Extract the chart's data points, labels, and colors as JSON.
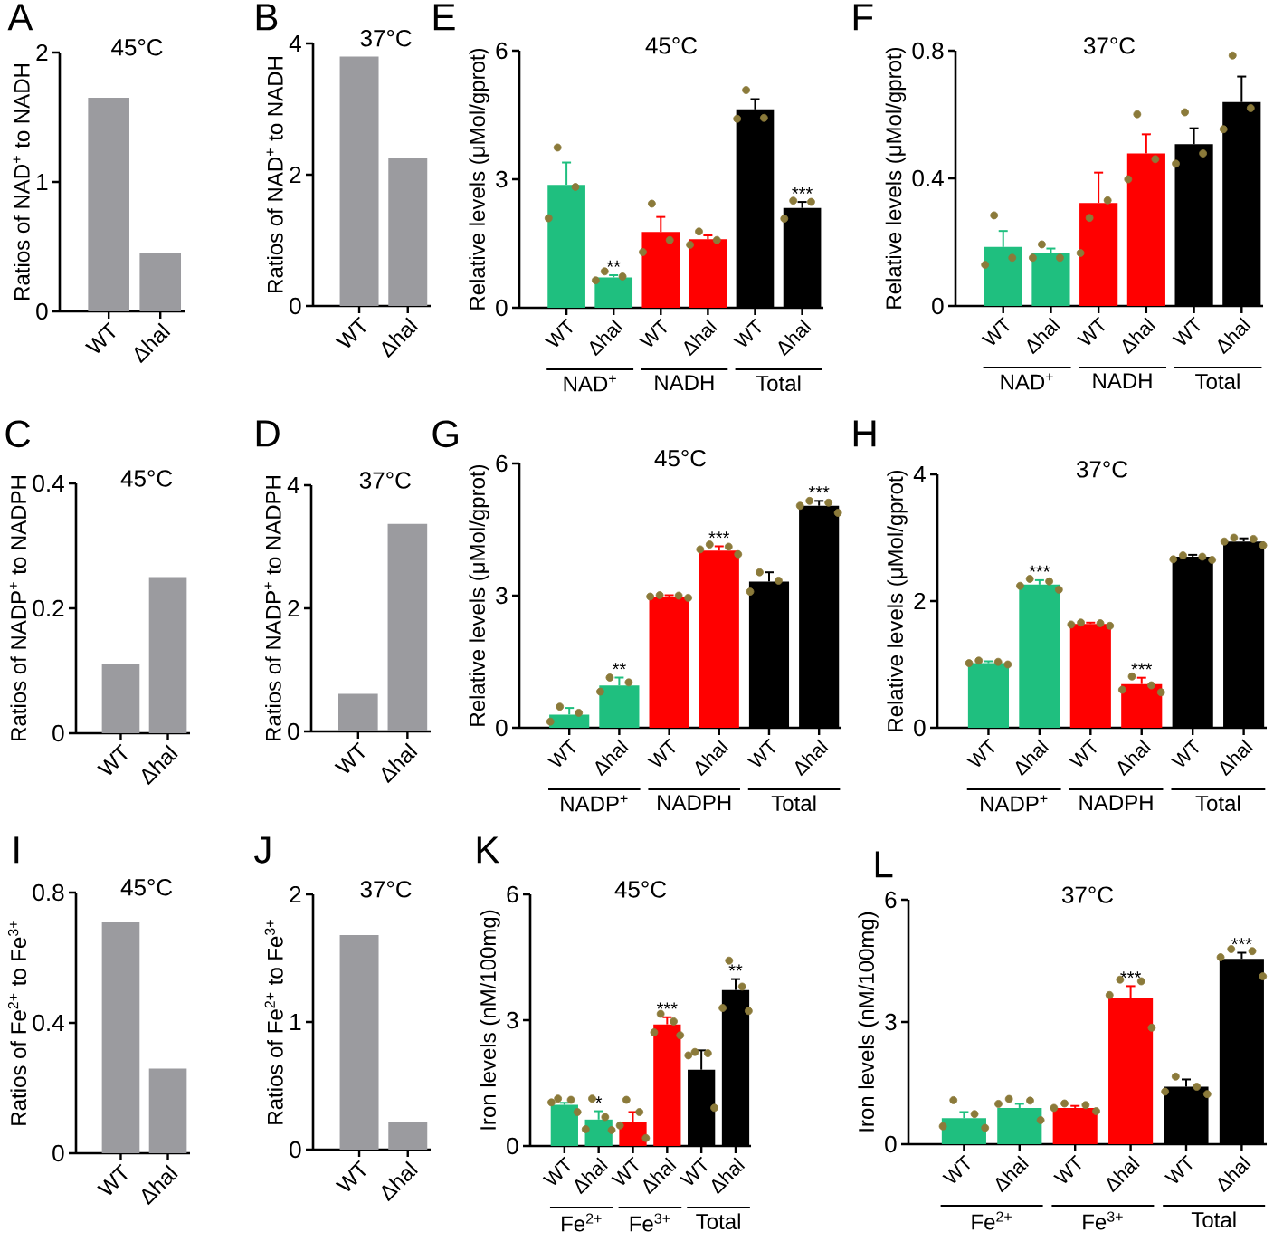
{
  "chart_data": [
    {
      "type": "bar",
      "title": "45°C",
      "ylabel": "Ratios of NAD$^{+}$ to NADH",
      "annotations": [
        "A"
      ],
      "categories": [
        "WT",
        "Δhal"
      ],
      "values": [
        1.65,
        0.45
      ],
      "color": "#9b9b9f",
      "ylim": [
        0,
        2
      ],
      "yticks": [
        0,
        1,
        2
      ]
    },
    {
      "type": "bar",
      "title": "37°C",
      "ylabel": "Ratios of NAD$^{+}$ to NADH",
      "annotations": [
        "B"
      ],
      "categories": [
        "WT",
        "Δhal"
      ],
      "values": [
        3.8,
        2.25
      ],
      "color": "#9b9b9f",
      "ylim": [
        0,
        4
      ],
      "yticks": [
        0,
        2,
        4
      ]
    },
    {
      "type": "bar",
      "title": "45°C",
      "ylabel": "Relative levels (μMol/gprot)",
      "annotations": [
        "E",
        "NAD$^{+}$",
        "NADH",
        "Total"
      ],
      "categories": [
        "WT",
        "Δhal",
        "WT",
        "Δhal",
        "WT",
        "Δhal"
      ],
      "ylim": [
        0,
        6
      ],
      "yticks": [
        0,
        3,
        6
      ],
      "series": [
        {
          "type": "bar",
          "colors": [
            "#1fbf7f",
            "#1fbf7f",
            "#ff0000",
            "#ff0000",
            "#000000",
            "#000000"
          ],
          "values": [
            2.87,
            0.71,
            1.77,
            1.6,
            4.63,
            2.33
          ],
          "errors": [
            [
              2.87,
              3.39
            ],
            [
              0.71,
              0.76
            ],
            [
              1.77,
              2.12
            ],
            [
              1.6,
              1.69
            ],
            [
              4.63,
              4.87
            ],
            [
              2.33,
              2.47
            ]
          ],
          "value_labels": [
            null,
            "**",
            null,
            null,
            null,
            "***"
          ]
        },
        {
          "type": "scatter",
          "color": "#8b7a3a",
          "values": [
            3.74,
            0.85,
            2.43,
            1.78,
            5.08,
            2.5
          ]
        },
        {
          "type": "scatter",
          "color": "#8b7a3a",
          "values": [
            2.82,
            0.73,
            1.58,
            1.58,
            4.43,
            2.47
          ]
        },
        {
          "type": "scatter",
          "color": "#8b7a3a",
          "values": [
            2.09,
            0.64,
            1.3,
            1.47,
            4.41,
            2.08
          ]
        }
      ]
    },
    {
      "type": "bar",
      "title": "37°C",
      "ylabel": "Relative levels (μMol/gprot)",
      "annotations": [
        "F",
        "NAD$^{+}$",
        "NADH",
        "Total"
      ],
      "categories": [
        "WT",
        "Δhal",
        "WT",
        "Δhal",
        "WT",
        "Δhal"
      ],
      "ylim": [
        0,
        0.8
      ],
      "yticks": [
        0,
        0.4,
        0.8
      ],
      "series": [
        {
          "type": "bar",
          "colors": [
            "#1fbf7f",
            "#1fbf7f",
            "#ff0000",
            "#ff0000",
            "#000000",
            "#000000"
          ],
          "values": [
            0.185,
            0.166,
            0.323,
            0.478,
            0.507,
            0.639
          ],
          "errors": [
            [
              0.185,
              0.235
            ],
            [
              0.166,
              0.18
            ],
            [
              0.323,
              0.418
            ],
            [
              0.478,
              0.538
            ],
            [
              0.507,
              0.557
            ],
            [
              0.639,
              0.719
            ]
          ]
        },
        {
          "type": "scatter",
          "color": "#8b7a3a",
          "values": [
            0.284,
            0.193,
            0.276,
            0.601,
            0.607,
            0.785
          ]
        },
        {
          "type": "scatter",
          "color": "#8b7a3a",
          "values": [
            0.151,
            0.151,
            0.331,
            0.46,
            0.478,
            0.62
          ]
        },
        {
          "type": "scatter",
          "color": "#8b7a3a",
          "values": [
            0.129,
            0.151,
            0.166,
            0.397,
            0.446,
            0.554
          ]
        }
      ]
    },
    {
      "type": "bar",
      "title": "45°C",
      "ylabel": "Ratios of NADP$^{+}$ to NADPH",
      "annotations": [
        "C"
      ],
      "categories": [
        "WT",
        "Δhal"
      ],
      "values": [
        0.11,
        0.25
      ],
      "color": "#9b9b9f",
      "ylim": [
        0,
        0.4
      ],
      "yticks": [
        0,
        0.2,
        0.4
      ]
    },
    {
      "type": "bar",
      "title": "37°C",
      "ylabel": "Ratios of NADP$^{+}$ to NADPH",
      "annotations": [
        "D"
      ],
      "categories": [
        "WT",
        "Δhal"
      ],
      "values": [
        0.61,
        3.37
      ],
      "color": "#9b9b9f",
      "ylim": [
        0,
        4
      ],
      "yticks": [
        0,
        2,
        4
      ]
    },
    {
      "type": "bar",
      "title": "45°C",
      "ylabel": "Relative levels (μMol/gprot)",
      "annotations": [
        "G",
        "NADP$^{+}$",
        "NADPH",
        "Total"
      ],
      "categories": [
        "WT",
        "Δhal",
        "WT",
        "Δhal",
        "WT",
        "Δhal"
      ],
      "ylim": [
        0,
        6
      ],
      "yticks": [
        0,
        3,
        6
      ],
      "series": [
        {
          "type": "bar",
          "colors": [
            "#1fbf7f",
            "#1fbf7f",
            "#ff0000",
            "#ff0000",
            "#000000",
            "#000000"
          ],
          "values": [
            0.3,
            0.96,
            2.98,
            4.02,
            3.32,
            5.04
          ],
          "errors": [
            [
              0.3,
              0.45
            ],
            [
              0.96,
              1.14
            ],
            [
              2.98,
              3.01
            ],
            [
              4.02,
              4.12
            ],
            [
              3.32,
              3.53
            ],
            [
              5.04,
              5.15
            ]
          ],
          "value_labels": [
            null,
            "**",
            null,
            "***",
            null,
            "***"
          ]
        },
        {
          "type": "scatter",
          "color": "#8b7a3a",
          "values": [
            0.48,
            1.14,
            3.01,
            4.16,
            3.53,
            5.15
          ]
        },
        {
          "type": "scatter",
          "color": "#8b7a3a",
          "values": [
            0.34,
            1.03,
            3.0,
            4.11,
            3.34,
            5.11
          ]
        },
        {
          "type": "scatter",
          "color": "#8b7a3a",
          "values": [
            0.14,
            0.82,
            2.98,
            4.05,
            3.09,
            5.04
          ]
        },
        {
          "type": "scatter",
          "color": "#8b7a3a",
          "values": [
            null,
            null,
            2.95,
            3.94,
            null,
            4.88
          ]
        }
      ]
    },
    {
      "type": "bar",
      "title": "37°C",
      "ylabel": "Relative levels (μMol/gprot)",
      "annotations": [
        "H",
        "NADP$^{+}$",
        "NADPH",
        "Total"
      ],
      "categories": [
        "WT",
        "Δhal",
        "WT",
        "Δhal",
        "WT",
        "Δhal"
      ],
      "ylim": [
        0,
        4
      ],
      "yticks": [
        0,
        2,
        4
      ],
      "series": [
        {
          "type": "bar",
          "colors": [
            "#1fbf7f",
            "#1fbf7f",
            "#ff0000",
            "#ff0000",
            "#000000",
            "#000000"
          ],
          "values": [
            1.02,
            2.26,
            1.64,
            0.69,
            2.7,
            2.94
          ],
          "errors": [
            [
              1.02,
              1.05
            ],
            [
              2.26,
              2.33
            ],
            [
              1.64,
              1.66
            ],
            [
              0.69,
              0.79
            ],
            [
              2.7,
              2.73
            ],
            [
              2.94,
              2.99
            ]
          ],
          "value_labels": [
            null,
            "***",
            null,
            "***",
            null,
            null
          ]
        },
        {
          "type": "scatter",
          "color": "#8b7a3a",
          "values": [
            1.06,
            2.35,
            1.66,
            0.81,
            2.72,
            3.0
          ]
        },
        {
          "type": "scatter",
          "color": "#8b7a3a",
          "values": [
            1.04,
            2.31,
            1.65,
            0.67,
            2.7,
            2.98
          ]
        },
        {
          "type": "scatter",
          "color": "#8b7a3a",
          "values": [
            1.02,
            2.24,
            1.63,
            0.6,
            2.66,
            2.94
          ]
        },
        {
          "type": "scatter",
          "color": "#8b7a3a",
          "values": [
            1.0,
            2.18,
            1.61,
            0.56,
            2.65,
            2.88
          ]
        }
      ]
    },
    {
      "type": "bar",
      "title": "45°C",
      "ylabel": "Ratios of Fe$^{2+}$ to Fe$^{3+}$",
      "annotations": [
        "I"
      ],
      "categories": [
        "WT",
        "Δhal"
      ],
      "values": [
        0.71,
        0.26
      ],
      "color": "#9b9b9f",
      "ylim": [
        0,
        0.8
      ],
      "yticks": [
        0,
        0.4,
        0.8
      ]
    },
    {
      "type": "bar",
      "title": "37°C",
      "ylabel": "Ratios of Fe$^{2+}$ to Fe$^{3+}$",
      "annotations": [
        "J"
      ],
      "categories": [
        "WT",
        "Δhal"
      ],
      "values": [
        1.68,
        0.22
      ],
      "color": "#9b9b9f",
      "ylim": [
        0,
        2
      ],
      "yticks": [
        0,
        1,
        2
      ]
    },
    {
      "type": "bar",
      "title": "45°C",
      "ylabel": "Iron levels (nM/100mg)",
      "annotations": [
        "K",
        "Fe$^{2+}$",
        "Fe$^{3+}$",
        "Total"
      ],
      "categories": [
        "WT",
        "Δhal",
        "WT",
        "Δhal",
        "WT",
        "Δhal"
      ],
      "ylim": [
        0,
        6
      ],
      "yticks": [
        0,
        3,
        6
      ],
      "series": [
        {
          "type": "bar",
          "colors": [
            "#1fbf7f",
            "#1fbf7f",
            "#ff0000",
            "#ff0000",
            "#000000",
            "#000000"
          ],
          "values": [
            0.98,
            0.63,
            0.58,
            2.9,
            1.82,
            3.72
          ],
          "errors": [
            [
              0.98,
              1.03
            ],
            [
              0.63,
              0.83
            ],
            [
              0.58,
              0.81
            ],
            [
              2.9,
              3.07
            ],
            [
              1.82,
              2.28
            ],
            [
              3.72,
              3.98
            ]
          ],
          "value_labels": [
            null,
            "*",
            null,
            "***",
            null,
            "**"
          ]
        },
        {
          "type": "scatter",
          "color": "#8b7a3a",
          "values": [
            1.13,
            1.13,
            1.1,
            3.15,
            2.24,
            4.42
          ]
        },
        {
          "type": "scatter",
          "color": "#8b7a3a",
          "values": [
            1.1,
            0.69,
            0.81,
            2.97,
            2.21,
            3.8
          ]
        },
        {
          "type": "scatter",
          "color": "#8b7a3a",
          "values": [
            1.04,
            0.4,
            0.49,
            2.71,
            2.16,
            3.29
          ]
        },
        {
          "type": "scatter",
          "color": "#8b7a3a",
          "values": [
            0.81,
            0.38,
            0.19,
            2.64,
            0.91,
            3.22
          ]
        }
      ]
    },
    {
      "type": "bar",
      "title": "37°C",
      "ylabel": "Iron levels (nM/100mg)",
      "annotations": [
        "L",
        "Fe$^{2+}$",
        "Fe$^{3+}$",
        "Total"
      ],
      "categories": [
        "WT",
        "Δhal",
        "WT",
        "Δhal",
        "WT",
        "Δhal"
      ],
      "ylim": [
        0,
        6
      ],
      "yticks": [
        0,
        3,
        6
      ],
      "series": [
        {
          "type": "bar",
          "colors": [
            "#1fbf7f",
            "#1fbf7f",
            "#ff0000",
            "#ff0000",
            "#000000",
            "#000000"
          ],
          "values": [
            0.64,
            0.89,
            0.89,
            3.6,
            1.41,
            4.55
          ],
          "errors": [
            [
              0.64,
              0.79
            ],
            [
              0.89,
              0.99
            ],
            [
              0.89,
              0.94
            ],
            [
              3.6,
              3.88
            ],
            [
              1.41,
              1.59
            ],
            [
              4.55,
              4.7
            ]
          ],
          "value_labels": [
            null,
            null,
            null,
            "***",
            null,
            "***"
          ]
        },
        {
          "type": "scatter",
          "color": "#8b7a3a",
          "values": [
            1.08,
            1.11,
            1.0,
            4.04,
            1.66,
            4.79
          ]
        },
        {
          "type": "scatter",
          "color": "#8b7a3a",
          "values": [
            0.74,
            1.07,
            0.96,
            4.0,
            1.41,
            4.74
          ]
        },
        {
          "type": "scatter",
          "color": "#8b7a3a",
          "values": [
            0.44,
            0.99,
            0.89,
            3.66,
            1.29,
            4.59
          ]
        },
        {
          "type": "scatter",
          "color": "#8b7a3a",
          "values": [
            0.4,
            0.59,
            0.81,
            2.86,
            1.23,
            4.12
          ]
        }
      ]
    }
  ]
}
